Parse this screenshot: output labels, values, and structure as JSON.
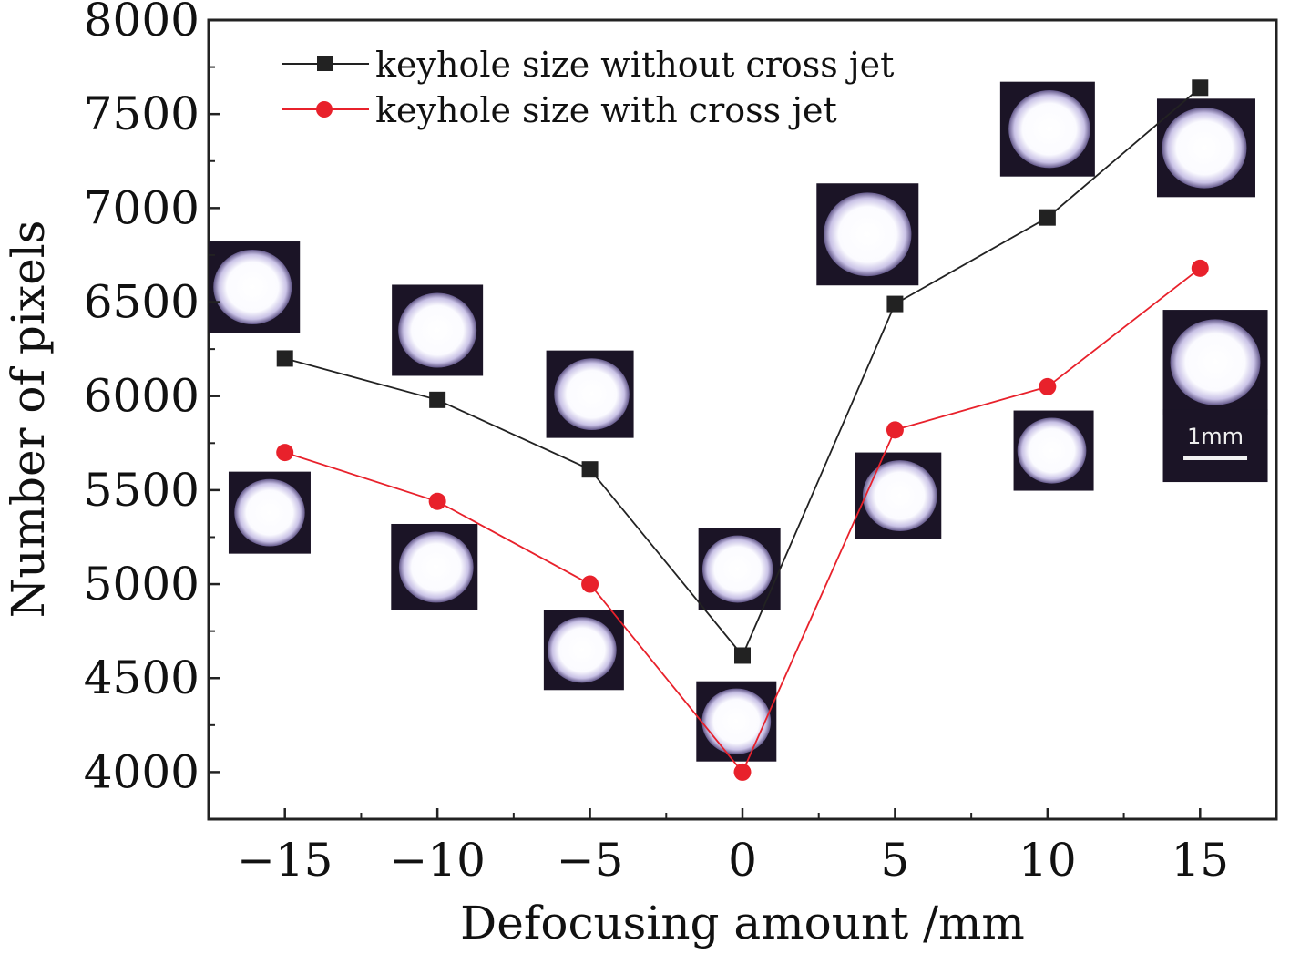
{
  "chart_data": {
    "type": "line",
    "title": "",
    "xlabel": "Defocusing amount /mm",
    "ylabel": "Number of pixels",
    "xlim": [
      -17.5,
      17.5
    ],
    "ylim": [
      3750,
      8000
    ],
    "xticks": [
      -15,
      -10,
      -5,
      0,
      5,
      10,
      15
    ],
    "xtick_labels": [
      "−15",
      "−10",
      "−5",
      "0",
      "5",
      "10",
      "15"
    ],
    "yticks": [
      4000,
      4500,
      5000,
      5500,
      6000,
      6500,
      7000,
      7500,
      8000
    ],
    "ytick_labels": [
      "4000",
      "4500",
      "5000",
      "5500",
      "6000",
      "6500",
      "7000",
      "7500",
      "8000"
    ],
    "grid": false,
    "legend_position": "top-left",
    "series": [
      {
        "name": "keyhole size without cross jet",
        "color": "#222222",
        "marker": "square",
        "x": [
          -15,
          -10,
          -5,
          0,
          5,
          10,
          15
        ],
        "y": [
          6200,
          5980,
          5610,
          4620,
          6490,
          6950,
          7640
        ]
      },
      {
        "name": "keyhole size with cross jet",
        "color": "#e8212b",
        "marker": "circle",
        "x": [
          -15,
          -10,
          -5,
          0,
          5,
          10,
          15
        ],
        "y": [
          5700,
          5440,
          5000,
          4000,
          5820,
          6050,
          6680
        ]
      }
    ],
    "inset_scale_label": "1mm"
  }
}
